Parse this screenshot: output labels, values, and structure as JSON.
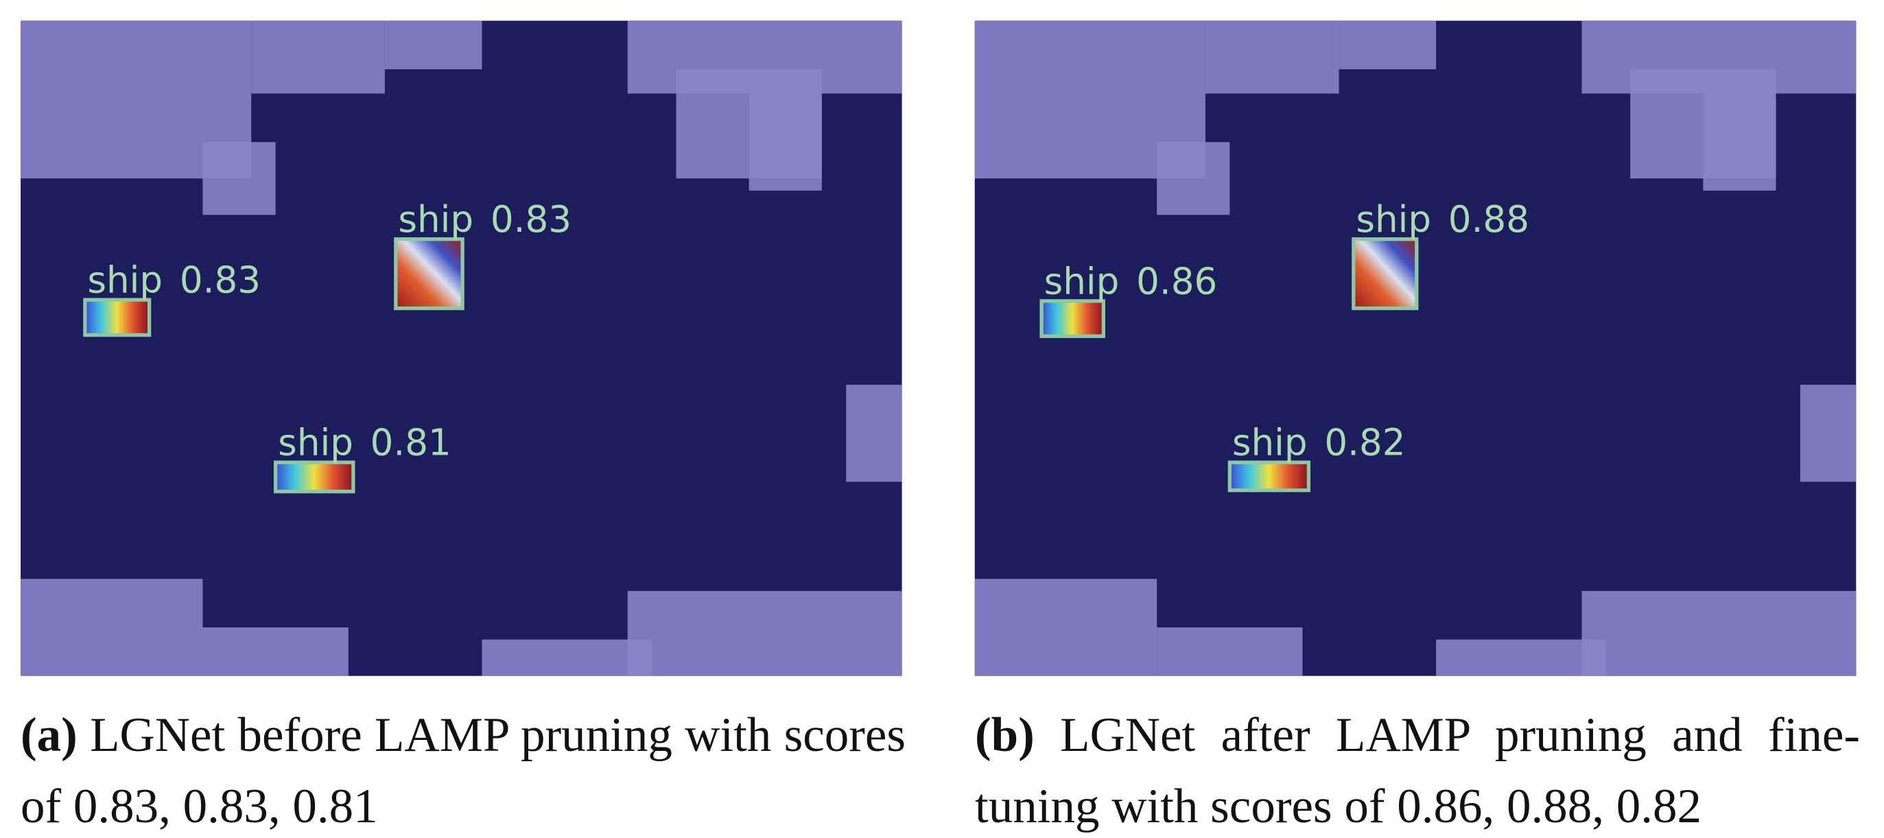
{
  "panels": [
    {
      "label": "(a)",
      "caption": "LGNet before LAMP pruning with scores of 0.83, 0.83, 0.81",
      "detections": [
        {
          "label": "ship",
          "score": 0.83
        },
        {
          "label": "ship",
          "score": 0.83
        },
        {
          "label": "ship",
          "score": 0.81
        }
      ]
    },
    {
      "label": "(b)",
      "caption": "LGNet after LAMP pruning and fine-tuning with scores of 0.86, 0.88, 0.82",
      "detections": [
        {
          "label": "ship",
          "score": 0.86
        },
        {
          "label": "ship",
          "score": 0.88
        },
        {
          "label": "ship",
          "score": 0.82
        }
      ]
    }
  ]
}
